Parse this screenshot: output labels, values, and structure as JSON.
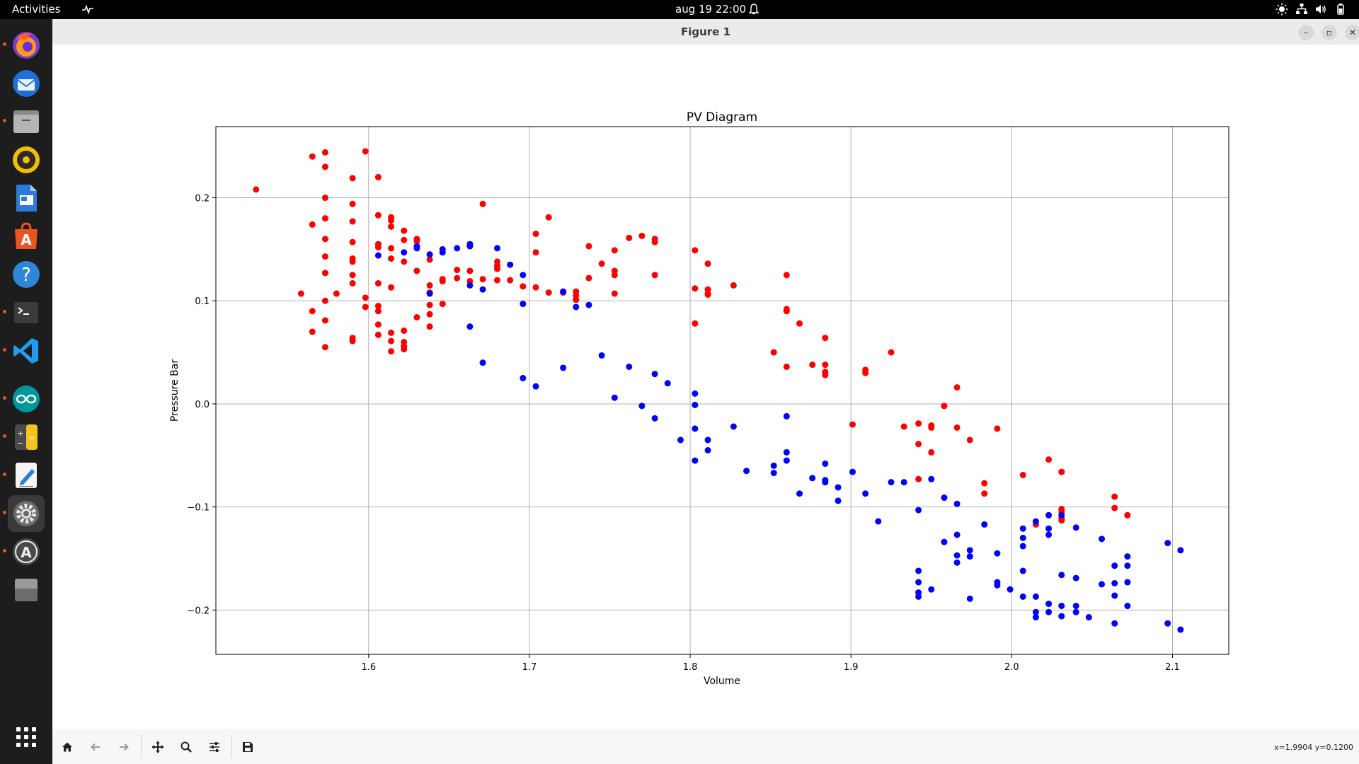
{
  "topbar": {
    "activities": "Activities",
    "clock": "aug 19  22:00"
  },
  "dock": {
    "items": [
      {
        "name": "firefox",
        "running": true
      },
      {
        "name": "thunderbird",
        "running": false
      },
      {
        "name": "files",
        "running": true
      },
      {
        "name": "rhythmbox",
        "running": false
      },
      {
        "name": "libreoffice-writer",
        "running": false
      },
      {
        "name": "app-center",
        "running": false
      },
      {
        "name": "help",
        "running": false
      },
      {
        "name": "terminal",
        "running": true
      },
      {
        "name": "vscode",
        "running": true
      },
      {
        "name": "arduino",
        "running": true
      },
      {
        "name": "calculator",
        "running": true
      },
      {
        "name": "text-editor",
        "running": true
      },
      {
        "name": "settings",
        "running": true,
        "active": true
      },
      {
        "name": "software-updater",
        "running": true
      },
      {
        "name": "trash",
        "running": false
      }
    ]
  },
  "window": {
    "title": "Figure 1"
  },
  "toolbar": {
    "coords": "x=1.9904 y=0.1200"
  },
  "colors": {
    "series_red": "#ff0000",
    "series_blue": "#0000ff",
    "grid": "#b0b0b0",
    "topbar": "#000000",
    "dock": "#1d1d1d",
    "dock_running_dot": "#e95420"
  },
  "chart_data": {
    "type": "scatter",
    "title": "PV Diagram",
    "xlabel": "Volume",
    "ylabel": "Pressure Bar",
    "xlim": [
      1.505,
      2.135
    ],
    "ylim": [
      -0.243,
      0.269
    ],
    "xticks": [
      "1.6",
      "1.7",
      "1.8",
      "1.9",
      "2.0",
      "2.1"
    ],
    "yticks": [
      "−0.2",
      "−0.1",
      "0.0",
      "0.1",
      "0.2"
    ],
    "grid": true,
    "series": [
      {
        "color": "red",
        "points": [
          [
            1.53,
            0.208
          ],
          [
            1.558,
            0.107
          ],
          [
            1.565,
            0.24
          ],
          [
            1.565,
            0.174
          ],
          [
            1.565,
            0.09
          ],
          [
            1.565,
            0.07
          ],
          [
            1.573,
            0.244
          ],
          [
            1.573,
            0.23
          ],
          [
            1.573,
            0.2
          ],
          [
            1.573,
            0.18
          ],
          [
            1.573,
            0.16
          ],
          [
            1.573,
            0.143
          ],
          [
            1.573,
            0.127
          ],
          [
            1.573,
            0.1
          ],
          [
            1.573,
            0.081
          ],
          [
            1.573,
            0.055
          ],
          [
            1.58,
            0.107
          ],
          [
            1.59,
            0.219
          ],
          [
            1.59,
            0.194
          ],
          [
            1.59,
            0.177
          ],
          [
            1.59,
            0.157
          ],
          [
            1.59,
            0.141
          ],
          [
            1.59,
            0.138
          ],
          [
            1.59,
            0.125
          ],
          [
            1.59,
            0.117
          ],
          [
            1.59,
            0.064
          ],
          [
            1.59,
            0.061
          ],
          [
            1.598,
            0.245
          ],
          [
            1.598,
            0.103
          ],
          [
            1.598,
            0.094
          ],
          [
            1.606,
            0.22
          ],
          [
            1.606,
            0.183
          ],
          [
            1.606,
            0.155
          ],
          [
            1.606,
            0.152
          ],
          [
            1.606,
            0.117
          ],
          [
            1.606,
            0.095
          ],
          [
            1.606,
            0.09
          ],
          [
            1.606,
            0.077
          ],
          [
            1.606,
            0.067
          ],
          [
            1.614,
            0.181
          ],
          [
            1.614,
            0.178
          ],
          [
            1.614,
            0.172
          ],
          [
            1.614,
            0.151
          ],
          [
            1.614,
            0.141
          ],
          [
            1.614,
            0.113
          ],
          [
            1.614,
            0.069
          ],
          [
            1.614,
            0.061
          ],
          [
            1.614,
            0.051
          ],
          [
            1.622,
            0.168
          ],
          [
            1.622,
            0.159
          ],
          [
            1.622,
            0.138
          ],
          [
            1.622,
            0.071
          ],
          [
            1.622,
            0.06
          ],
          [
            1.622,
            0.056
          ],
          [
            1.622,
            0.053
          ],
          [
            1.63,
            0.16
          ],
          [
            1.63,
            0.158
          ],
          [
            1.63,
            0.129
          ],
          [
            1.63,
            0.084
          ],
          [
            1.638,
            0.14
          ],
          [
            1.638,
            0.115
          ],
          [
            1.638,
            0.108
          ],
          [
            1.638,
            0.096
          ],
          [
            1.638,
            0.087
          ],
          [
            1.638,
            0.075
          ],
          [
            1.646,
            0.121
          ],
          [
            1.646,
            0.119
          ],
          [
            1.646,
            0.097
          ],
          [
            1.655,
            0.13
          ],
          [
            1.655,
            0.122
          ],
          [
            1.663,
            0.129
          ],
          [
            1.663,
            0.119
          ],
          [
            1.671,
            0.194
          ],
          [
            1.671,
            0.121
          ],
          [
            1.68,
            0.138
          ],
          [
            1.68,
            0.134
          ],
          [
            1.68,
            0.131
          ],
          [
            1.68,
            0.12
          ],
          [
            1.688,
            0.12
          ],
          [
            1.696,
            0.114
          ],
          [
            1.704,
            0.165
          ],
          [
            1.704,
            0.147
          ],
          [
            1.704,
            0.113
          ],
          [
            1.712,
            0.181
          ],
          [
            1.712,
            0.108
          ],
          [
            1.721,
            0.108
          ],
          [
            1.729,
            0.109
          ],
          [
            1.729,
            0.105
          ],
          [
            1.729,
            0.101
          ],
          [
            1.737,
            0.153
          ],
          [
            1.737,
            0.122
          ],
          [
            1.745,
            0.136
          ],
          [
            1.753,
            0.149
          ],
          [
            1.753,
            0.129
          ],
          [
            1.753,
            0.125
          ],
          [
            1.753,
            0.107
          ],
          [
            1.762,
            0.161
          ],
          [
            1.77,
            0.163
          ],
          [
            1.778,
            0.16
          ],
          [
            1.778,
            0.157
          ],
          [
            1.778,
            0.125
          ],
          [
            1.803,
            0.149
          ],
          [
            1.803,
            0.112
          ],
          [
            1.803,
            0.078
          ],
          [
            1.811,
            0.136
          ],
          [
            1.811,
            0.111
          ],
          [
            1.811,
            0.107
          ],
          [
            1.811,
            0.106
          ],
          [
            1.827,
            0.115
          ],
          [
            1.852,
            0.05
          ],
          [
            1.86,
            0.125
          ],
          [
            1.86,
            0.092
          ],
          [
            1.86,
            0.09
          ],
          [
            1.86,
            0.036
          ],
          [
            1.868,
            0.078
          ],
          [
            1.876,
            0.038
          ],
          [
            1.884,
            0.064
          ],
          [
            1.884,
            0.038
          ],
          [
            1.884,
            0.031
          ],
          [
            1.884,
            0.028
          ],
          [
            1.901,
            -0.02
          ],
          [
            1.909,
            0.033
          ],
          [
            1.909,
            0.03
          ],
          [
            1.925,
            0.05
          ],
          [
            1.933,
            -0.022
          ],
          [
            1.942,
            -0.019
          ],
          [
            1.942,
            -0.039
          ],
          [
            1.942,
            -0.073
          ],
          [
            1.95,
            -0.021
          ],
          [
            1.95,
            -0.023
          ],
          [
            1.95,
            -0.047
          ],
          [
            1.958,
            -0.002
          ],
          [
            1.966,
            0.016
          ],
          [
            1.966,
            -0.023
          ],
          [
            1.974,
            -0.035
          ],
          [
            1.983,
            -0.077
          ],
          [
            1.983,
            -0.087
          ],
          [
            1.991,
            -0.024
          ],
          [
            2.007,
            -0.069
          ],
          [
            2.015,
            -0.117
          ],
          [
            2.023,
            -0.054
          ],
          [
            2.031,
            -0.066
          ],
          [
            2.031,
            -0.102
          ],
          [
            2.031,
            -0.105
          ],
          [
            2.031,
            -0.111
          ],
          [
            2.031,
            -0.113
          ],
          [
            2.064,
            -0.09
          ],
          [
            2.064,
            -0.101
          ],
          [
            2.072,
            -0.108
          ]
        ]
      },
      {
        "color": "blue",
        "points": [
          [
            1.606,
            0.144
          ],
          [
            1.622,
            0.147
          ],
          [
            1.63,
            0.151
          ],
          [
            1.63,
            0.153
          ],
          [
            1.638,
            0.145
          ],
          [
            1.638,
            0.107
          ],
          [
            1.646,
            0.15
          ],
          [
            1.646,
            0.147
          ],
          [
            1.655,
            0.151
          ],
          [
            1.663,
            0.155
          ],
          [
            1.663,
            0.153
          ],
          [
            1.663,
            0.115
          ],
          [
            1.663,
            0.075
          ],
          [
            1.671,
            0.111
          ],
          [
            1.671,
            0.04
          ],
          [
            1.68,
            0.151
          ],
          [
            1.688,
            0.135
          ],
          [
            1.696,
            0.125
          ],
          [
            1.696,
            0.097
          ],
          [
            1.696,
            0.025
          ],
          [
            1.704,
            0.017
          ],
          [
            1.721,
            0.109
          ],
          [
            1.721,
            0.035
          ],
          [
            1.729,
            0.094
          ],
          [
            1.737,
            0.096
          ],
          [
            1.745,
            0.047
          ],
          [
            1.753,
            0.006
          ],
          [
            1.762,
            0.036
          ],
          [
            1.77,
            -0.002
          ],
          [
            1.778,
            0.029
          ],
          [
            1.778,
            -0.014
          ],
          [
            1.786,
            0.02
          ],
          [
            1.794,
            -0.035
          ],
          [
            1.803,
            0.01
          ],
          [
            1.803,
            -0.001
          ],
          [
            1.803,
            -0.024
          ],
          [
            1.803,
            -0.055
          ],
          [
            1.811,
            -0.035
          ],
          [
            1.811,
            -0.045
          ],
          [
            1.827,
            -0.022
          ],
          [
            1.835,
            -0.065
          ],
          [
            1.852,
            -0.06
          ],
          [
            1.852,
            -0.067
          ],
          [
            1.86,
            -0.012
          ],
          [
            1.86,
            -0.047
          ],
          [
            1.86,
            -0.055
          ],
          [
            1.868,
            -0.087
          ],
          [
            1.876,
            -0.072
          ],
          [
            1.884,
            -0.058
          ],
          [
            1.884,
            -0.074
          ],
          [
            1.884,
            -0.076
          ],
          [
            1.892,
            -0.081
          ],
          [
            1.892,
            -0.094
          ],
          [
            1.901,
            -0.066
          ],
          [
            1.909,
            -0.087
          ],
          [
            1.917,
            -0.114
          ],
          [
            1.925,
            -0.076
          ],
          [
            1.933,
            -0.076
          ],
          [
            1.942,
            -0.103
          ],
          [
            1.942,
            -0.162
          ],
          [
            1.942,
            -0.173
          ],
          [
            1.942,
            -0.183
          ],
          [
            1.942,
            -0.187
          ],
          [
            1.95,
            -0.073
          ],
          [
            1.95,
            -0.18
          ],
          [
            1.958,
            -0.091
          ],
          [
            1.958,
            -0.134
          ],
          [
            1.966,
            -0.097
          ],
          [
            1.966,
            -0.127
          ],
          [
            1.966,
            -0.147
          ],
          [
            1.966,
            -0.154
          ],
          [
            1.974,
            -0.142
          ],
          [
            1.974,
            -0.148
          ],
          [
            1.974,
            -0.189
          ],
          [
            1.983,
            -0.117
          ],
          [
            1.991,
            -0.145
          ],
          [
            1.991,
            -0.173
          ],
          [
            1.991,
            -0.176
          ],
          [
            1.999,
            -0.18
          ],
          [
            2.007,
            -0.121
          ],
          [
            2.007,
            -0.13
          ],
          [
            2.007,
            -0.138
          ],
          [
            2.007,
            -0.162
          ],
          [
            2.007,
            -0.187
          ],
          [
            2.015,
            -0.114
          ],
          [
            2.015,
            -0.187
          ],
          [
            2.015,
            -0.202
          ],
          [
            2.015,
            -0.207
          ],
          [
            2.023,
            -0.108
          ],
          [
            2.023,
            -0.121
          ],
          [
            2.023,
            -0.127
          ],
          [
            2.023,
            -0.194
          ],
          [
            2.023,
            -0.202
          ],
          [
            2.031,
            -0.108
          ],
          [
            2.031,
            -0.166
          ],
          [
            2.031,
            -0.196
          ],
          [
            2.031,
            -0.206
          ],
          [
            2.04,
            -0.12
          ],
          [
            2.04,
            -0.169
          ],
          [
            2.04,
            -0.196
          ],
          [
            2.04,
            -0.202
          ],
          [
            2.048,
            -0.207
          ],
          [
            2.056,
            -0.131
          ],
          [
            2.056,
            -0.175
          ],
          [
            2.064,
            -0.157
          ],
          [
            2.064,
            -0.174
          ],
          [
            2.064,
            -0.186
          ],
          [
            2.064,
            -0.213
          ],
          [
            2.072,
            -0.148
          ],
          [
            2.072,
            -0.157
          ],
          [
            2.072,
            -0.173
          ],
          [
            2.072,
            -0.196
          ],
          [
            2.097,
            -0.135
          ],
          [
            2.097,
            -0.213
          ],
          [
            2.105,
            -0.142
          ],
          [
            2.105,
            -0.219
          ]
        ]
      }
    ]
  }
}
